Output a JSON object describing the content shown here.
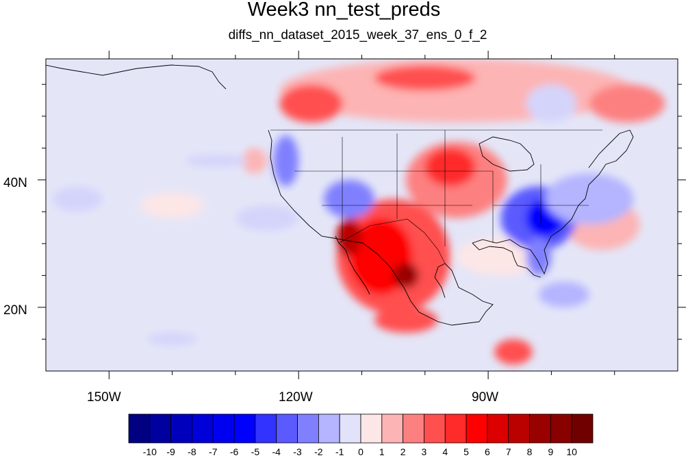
{
  "title": "Week3 nn_test_preds",
  "subtitle": "diffs_nn_dataset_2015_week_37_ens_0_f_2",
  "axes": {
    "lon_labels": [
      "150W",
      "120W",
      "90W"
    ],
    "lat_labels": [
      "40N",
      "20N"
    ],
    "lon_range": [
      -160,
      -60
    ],
    "lat_range": [
      10,
      59
    ]
  },
  "colorbar": {
    "labels": [
      "-10",
      "-9",
      "-8",
      "-7",
      "-6",
      "-5",
      "-4",
      "-3",
      "-2",
      "-1",
      "0",
      "1",
      "2",
      "3",
      "4",
      "5",
      "6",
      "7",
      "8",
      "9",
      "10"
    ],
    "colors": [
      "#000080",
      "#00009e",
      "#0000bc",
      "#0000d9",
      "#0000f0",
      "#0000ff",
      "#3333ff",
      "#5a5aff",
      "#8080ff",
      "#b4b4ff",
      "#e2e2fa",
      "#fde6e6",
      "#fdb4b4",
      "#fd8080",
      "#ff5050",
      "#ff2a2a",
      "#ff0000",
      "#dd0000",
      "#bb0000",
      "#990000",
      "#880000",
      "#700000"
    ]
  },
  "field": {
    "background": "#e4e6f8",
    "features": [
      {
        "type": "warm",
        "lon": -95,
        "lat": 54,
        "rx": 28,
        "ry": 5,
        "level": 2
      },
      {
        "type": "warm",
        "lon": -118,
        "lat": 52,
        "rx": 5,
        "ry": 3,
        "level": 4
      },
      {
        "type": "warm",
        "lon": -100,
        "lat": 56,
        "rx": 8,
        "ry": 2,
        "level": 4
      },
      {
        "type": "warm",
        "lon": -68,
        "lat": 52,
        "rx": 6,
        "ry": 3,
        "level": 3
      },
      {
        "type": "warm",
        "lon": -95,
        "lat": 40,
        "rx": 8,
        "ry": 6,
        "level": 3
      },
      {
        "type": "warm",
        "lon": -96,
        "lat": 42,
        "rx": 4,
        "ry": 3,
        "level": 5
      },
      {
        "type": "warm",
        "lon": -105,
        "lat": 28,
        "rx": 9,
        "ry": 9,
        "level": 4
      },
      {
        "type": "warm",
        "lon": -107,
        "lat": 28,
        "rx": 5,
        "ry": 6,
        "level": 6
      },
      {
        "type": "warm",
        "lon": -112,
        "lat": 31,
        "rx": 2,
        "ry": 3,
        "level": 8
      },
      {
        "type": "warm",
        "lon": -103,
        "lat": 25,
        "rx": 2,
        "ry": 2,
        "level": 9
      },
      {
        "type": "warm",
        "lon": -103,
        "lat": 18,
        "rx": 5,
        "ry": 2,
        "level": 4
      },
      {
        "type": "warm",
        "lon": -86,
        "lat": 13,
        "rx": 3,
        "ry": 2,
        "level": 4
      },
      {
        "type": "warm",
        "lon": -140,
        "lat": 36,
        "rx": 5,
        "ry": 2,
        "level": 1
      },
      {
        "type": "warm",
        "lon": -127,
        "lat": 43,
        "rx": 2,
        "ry": 2,
        "level": 2
      },
      {
        "type": "warm",
        "lon": -88,
        "lat": 28,
        "rx": 7,
        "ry": 3,
        "level": 1
      },
      {
        "type": "warm",
        "lon": -72,
        "lat": 33,
        "rx": 6,
        "ry": 4,
        "level": 2
      },
      {
        "type": "cold",
        "lon": -82,
        "lat": 34,
        "rx": 6,
        "ry": 5,
        "level": 4
      },
      {
        "type": "cold",
        "lon": -81,
        "lat": 34,
        "rx": 3,
        "ry": 3,
        "level": 6
      },
      {
        "type": "cold",
        "lon": -82,
        "lat": 28,
        "rx": 2,
        "ry": 3,
        "level": 3
      },
      {
        "type": "cold",
        "lon": -122,
        "lat": 43,
        "rx": 2,
        "ry": 4,
        "level": 3
      },
      {
        "type": "cold",
        "lon": -112,
        "lat": 37,
        "rx": 4,
        "ry": 3,
        "level": 3
      },
      {
        "type": "cold",
        "lon": -133,
        "lat": 43,
        "rx": 5,
        "ry": 1,
        "level": 1
      },
      {
        "type": "cold",
        "lon": -155,
        "lat": 37,
        "rx": 4,
        "ry": 2,
        "level": 1
      },
      {
        "type": "cold",
        "lon": -125,
        "lat": 34,
        "rx": 5,
        "ry": 2,
        "level": 1
      },
      {
        "type": "cold",
        "lon": -74,
        "lat": 37,
        "rx": 7,
        "ry": 4,
        "level": 2
      },
      {
        "type": "cold",
        "lon": -78,
        "lat": 22,
        "rx": 4,
        "ry": 2,
        "level": 2
      },
      {
        "type": "cold",
        "lon": -140,
        "lat": 15,
        "rx": 4,
        "ry": 1,
        "level": 1
      },
      {
        "type": "cold",
        "lon": -80,
        "lat": 52,
        "rx": 4,
        "ry": 3,
        "level": 1
      }
    ]
  }
}
